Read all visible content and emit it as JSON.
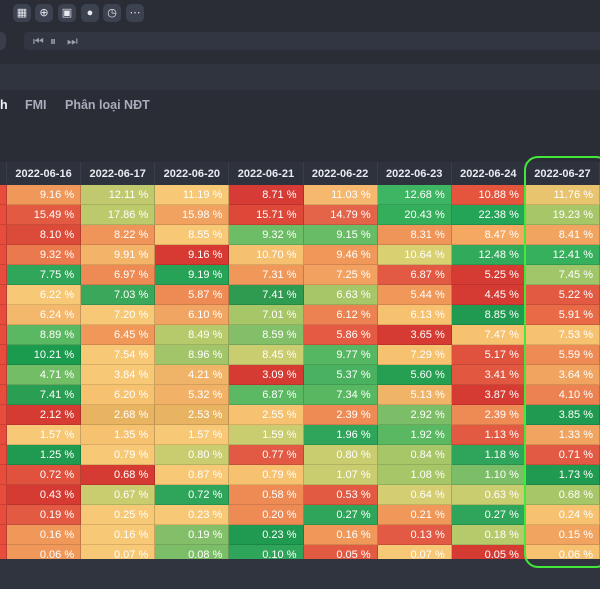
{
  "toolbar": {
    "icons": [
      "table-icon",
      "zoom-icon",
      "gift-icon",
      "circle-icon",
      "clock-icon",
      "more-icon"
    ],
    "glyphs": [
      "▦",
      "⊕",
      "▣",
      "●",
      "◷",
      "⋯"
    ]
  },
  "player": {
    "prev": "⏮",
    "pause": "⏸",
    "next": "⏭"
  },
  "tabs": [
    {
      "label": "h",
      "active": true
    },
    {
      "label": "FMI",
      "active": false
    },
    {
      "label": "Phân loại NĐT",
      "active": false
    }
  ],
  "table": {
    "columns": [
      "",
      "2022-06-16",
      "2022-06-17",
      "2022-06-20",
      "2022-06-21",
      "2022-06-22",
      "2022-06-23",
      "2022-06-24",
      "2022-06-27"
    ],
    "rows": [
      [
        [
          "",
          "#e74c3c"
        ],
        [
          "9.16 %",
          "#f0985a"
        ],
        [
          "12.11 %",
          "#c1c96e"
        ],
        [
          "11.19 %",
          "#f7c875"
        ],
        [
          "8.71 %",
          "#d63b35"
        ],
        [
          "11.03 %",
          "#f5b86e"
        ],
        [
          "12.68 %",
          "#3db562"
        ],
        [
          "10.88 %",
          "#e5553e"
        ],
        [
          "11.76 %",
          "#e9c46f"
        ]
      ],
      [
        [
          "",
          "#e74c3c"
        ],
        [
          "15.49 %",
          "#e35a42"
        ],
        [
          "17.86 %",
          "#bcca6c"
        ],
        [
          "15.98 %",
          "#f1a260"
        ],
        [
          "15.71 %",
          "#dd4839"
        ],
        [
          "14.79 %",
          "#e4644a"
        ],
        [
          "20.43 %",
          "#35ae5c"
        ],
        [
          "22.38 %",
          "#23a456"
        ],
        [
          "19.23 %",
          "#a7c667"
        ]
      ],
      [
        [
          "",
          "#e74c3c"
        ],
        [
          "8.10 %",
          "#dc4b3a"
        ],
        [
          "8.22 %",
          "#f0955a"
        ],
        [
          "8.55 %",
          "#f7c875"
        ],
        [
          "9.32 %",
          "#6cbd66"
        ],
        [
          "9.15 %",
          "#68bc65"
        ],
        [
          "8.31 %",
          "#f0955a"
        ],
        [
          "8.47 %",
          "#f4a862"
        ],
        [
          "8.41 %",
          "#f0a460"
        ]
      ],
      [
        [
          "",
          "#e74c3c"
        ],
        [
          "9.32 %",
          "#ea7a4e"
        ],
        [
          "9.91 %",
          "#f3b469"
        ],
        [
          "9.16 %",
          "#d73a32"
        ],
        [
          "10.70 %",
          "#f5c070"
        ],
        [
          "9.46 %",
          "#f0985a"
        ],
        [
          "10.64 %",
          "#d9d072"
        ],
        [
          "12.48 %",
          "#31ab5b"
        ],
        [
          "12.41 %",
          "#37b05e"
        ]
      ],
      [
        [
          "",
          "#e74c3c"
        ],
        [
          "7.75 %",
          "#2fa65a"
        ],
        [
          "6.97 %",
          "#ee8b55"
        ],
        [
          "9.19 %",
          "#27a357"
        ],
        [
          "7.31 %",
          "#f0985a"
        ],
        [
          "7.25 %",
          "#f2a161"
        ],
        [
          "6.87 %",
          "#e25a43"
        ],
        [
          "5.25 %",
          "#d53b33"
        ],
        [
          "7.45 %",
          "#a1c569"
        ]
      ],
      [
        [
          "",
          "#e74c3c"
        ],
        [
          "6.22 %",
          "#f7c875"
        ],
        [
          "7.03 %",
          "#3aa75a"
        ],
        [
          "5.87 %",
          "#ee8b55"
        ],
        [
          "7.41 %",
          "#2f9b50"
        ],
        [
          "6.63 %",
          "#a7c667"
        ],
        [
          "5.44 %",
          "#f0985a"
        ],
        [
          "4.45 %",
          "#d53b33"
        ],
        [
          "5.22 %",
          "#e35a42"
        ]
      ],
      [
        [
          "",
          "#e74c3c"
        ],
        [
          "6.24 %",
          "#f4b86c"
        ],
        [
          "7.20 %",
          "#f7c875"
        ],
        [
          "6.10 %",
          "#f1a563"
        ],
        [
          "7.01 %",
          "#a7c667"
        ],
        [
          "6.12 %",
          "#ec8252"
        ],
        [
          "6.13 %",
          "#f6c270"
        ],
        [
          "8.85 %",
          "#1f9a50"
        ],
        [
          "5.91 %",
          "#e86a47"
        ]
      ],
      [
        [
          "",
          "#e74c3c"
        ],
        [
          "8.89 %",
          "#5bb862"
        ],
        [
          "6.45 %",
          "#f0985a"
        ],
        [
          "8.49 %",
          "#b6ca6c"
        ],
        [
          "8.59 %",
          "#82bf68"
        ],
        [
          "5.86 %",
          "#e55a43"
        ],
        [
          "3.65 %",
          "#d53b33"
        ],
        [
          "7.47 %",
          "#f6c270"
        ],
        [
          "7.53 %",
          "#f7c270"
        ]
      ],
      [
        [
          "",
          "#e74c3c"
        ],
        [
          "10.21 %",
          "#1a9b4e"
        ],
        [
          "7.54 %",
          "#f7c875"
        ],
        [
          "8.96 %",
          "#a3c569"
        ],
        [
          "8.45 %",
          "#c9cc6f"
        ],
        [
          "9.77 %",
          "#55b761"
        ],
        [
          "7.29 %",
          "#f6c270"
        ],
        [
          "5.17 %",
          "#e0523e"
        ],
        [
          "5.59 %",
          "#ee8b55"
        ]
      ],
      [
        [
          "",
          "#e74c3c"
        ],
        [
          "4.71 %",
          "#72bd66"
        ],
        [
          "3.84 %",
          "#f7c875"
        ],
        [
          "4.21 %",
          "#f0b468"
        ],
        [
          "3.09 %",
          "#d53b33"
        ],
        [
          "5.37 %",
          "#4ab161"
        ],
        [
          "5.60 %",
          "#279f53"
        ],
        [
          "3.41 %",
          "#e2573f"
        ],
        [
          "3.64 %",
          "#f0a460"
        ]
      ],
      [
        [
          "",
          "#e74c3c"
        ],
        [
          "7.41 %",
          "#2a9e52"
        ],
        [
          "6.20 %",
          "#f6c270"
        ],
        [
          "5.32 %",
          "#f1b167"
        ],
        [
          "6.87 %",
          "#5cb963"
        ],
        [
          "7.34 %",
          "#58b862"
        ],
        [
          "5.13 %",
          "#f0b468"
        ],
        [
          "3.87 %",
          "#d53b33"
        ],
        [
          "4.10 %",
          "#ec8252"
        ]
      ],
      [
        [
          "",
          "#e74c3c"
        ],
        [
          "2.12 %",
          "#d53b33"
        ],
        [
          "2.68 %",
          "#e8b462"
        ],
        [
          "2.53 %",
          "#e8b462"
        ],
        [
          "2.55 %",
          "#f6c270"
        ],
        [
          "2.39 %",
          "#ee8b55"
        ],
        [
          "2.92 %",
          "#7bbe67"
        ],
        [
          "2.39 %",
          "#ee8b55"
        ],
        [
          "3.85 %",
          "#1f9a50"
        ]
      ],
      [
        [
          "",
          "#e74c3c"
        ],
        [
          "1.57 %",
          "#f7c875"
        ],
        [
          "1.35 %",
          "#f6c270"
        ],
        [
          "1.57 %",
          "#f7c875"
        ],
        [
          "1.59 %",
          "#c9cc6f"
        ],
        [
          "1.96 %",
          "#2ea55a"
        ],
        [
          "1.92 %",
          "#5bb862"
        ],
        [
          "1.13 %",
          "#e35a42"
        ],
        [
          "1.33 %",
          "#f0a460"
        ]
      ],
      [
        [
          "",
          "#e74c3c"
        ],
        [
          "1.25 %",
          "#1f9a50"
        ],
        [
          "0.79 %",
          "#f7c875"
        ],
        [
          "0.80 %",
          "#c9cc6f"
        ],
        [
          "0.77 %",
          "#e25a43"
        ],
        [
          "0.80 %",
          "#c9cc6f"
        ],
        [
          "0.84 %",
          "#a7c667"
        ],
        [
          "1.18 %",
          "#2ea55a"
        ],
        [
          "0.71 %",
          "#e25a43"
        ]
      ],
      [
        [
          "",
          "#e74c3c"
        ],
        [
          "0.72 %",
          "#e0523e"
        ],
        [
          "0.68 %",
          "#d53b33"
        ],
        [
          "0.87 %",
          "#f7c875"
        ],
        [
          "0.79 %",
          "#f6c270"
        ],
        [
          "1.07 %",
          "#c9cc6f"
        ],
        [
          "1.08 %",
          "#a7c667"
        ],
        [
          "1.10 %",
          "#7bbe67"
        ],
        [
          "1.73 %",
          "#1f9a50"
        ]
      ],
      [
        [
          "",
          "#e74c3c"
        ],
        [
          "0.43 %",
          "#d53b33"
        ],
        [
          "0.67 %",
          "#c9cc6f"
        ],
        [
          "0.72 %",
          "#2ea55a"
        ],
        [
          "0.58 %",
          "#ee8b55"
        ],
        [
          "0.53 %",
          "#e35a42"
        ],
        [
          "0.64 %",
          "#d4cd71"
        ],
        [
          "0.63 %",
          "#c9cc6f"
        ],
        [
          "0.68 %",
          "#a7c667"
        ]
      ],
      [
        [
          "",
          "#e74c3c"
        ],
        [
          "0.19 %",
          "#e35a42"
        ],
        [
          "0.25 %",
          "#f7c875"
        ],
        [
          "0.23 %",
          "#f7c875"
        ],
        [
          "0.20 %",
          "#ee8b55"
        ],
        [
          "0.27 %",
          "#2ea55a"
        ],
        [
          "0.21 %",
          "#f0985a"
        ],
        [
          "0.27 %",
          "#2ea55a"
        ],
        [
          "0.24 %",
          "#f6c270"
        ]
      ],
      [
        [
          "",
          "#e74c3c"
        ],
        [
          "0.16 %",
          "#f0985a"
        ],
        [
          "0.16 %",
          "#f7c875"
        ],
        [
          "0.19 %",
          "#82bf68"
        ],
        [
          "0.23 %",
          "#1f9a50"
        ],
        [
          "0.16 %",
          "#f0985a"
        ],
        [
          "0.13 %",
          "#e25a43"
        ],
        [
          "0.18 %",
          "#b6ca6c"
        ],
        [
          "0.15 %",
          "#f0a460"
        ]
      ],
      [
        [
          "",
          "#e74c3c"
        ],
        [
          "0.06 %",
          "#f0985a"
        ],
        [
          "0.07 %",
          "#f7c875"
        ],
        [
          "0.08 %",
          "#7bbe67"
        ],
        [
          "0.10 %",
          "#2ea55a"
        ],
        [
          "0.05 %",
          "#e35a42"
        ],
        [
          "0.07 %",
          "#f7c875"
        ],
        [
          "0.05 %",
          "#d53b33"
        ],
        [
          "0.06 %",
          "#f6c270"
        ]
      ]
    ]
  },
  "highlight_color": "#42e83a"
}
